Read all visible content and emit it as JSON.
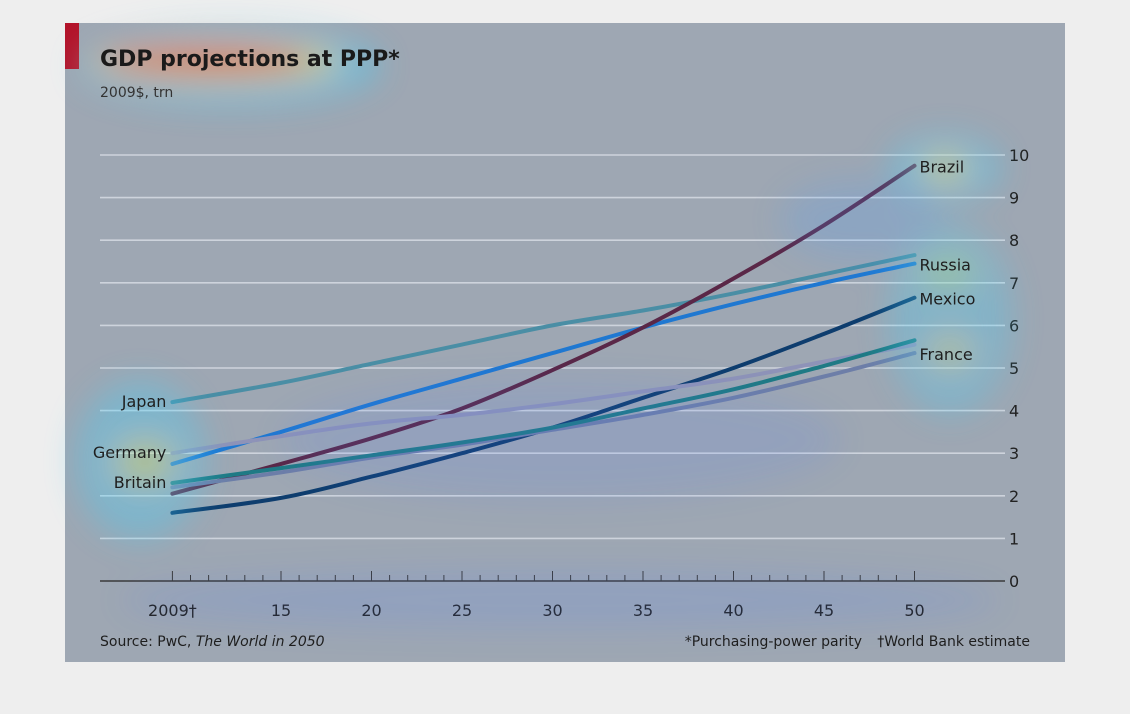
{
  "chart_data": {
    "type": "line",
    "title": "GDP projections at PPP*",
    "subtitle": "2009$, trn",
    "x_tick_labels": [
      "2009†",
      "15",
      "20",
      "25",
      "30",
      "35",
      "40",
      "45",
      "50"
    ],
    "x_tick_values": [
      2009,
      2015,
      2020,
      2025,
      2030,
      2035,
      2040,
      2045,
      2050
    ],
    "xlim": [
      2005,
      2055
    ],
    "ylim": [
      0,
      10
    ],
    "y_ticks": [
      0,
      1,
      2,
      3,
      4,
      5,
      6,
      7,
      8,
      9,
      10
    ],
    "y_axis_side": "right",
    "grid": true,
    "legend": "direct labels at line ends",
    "series": [
      {
        "name": "Japan",
        "color": "#4a8ea5",
        "x": [
          2009,
          2015,
          2020,
          2025,
          2030,
          2035,
          2040,
          2045,
          2050
        ],
        "y": [
          4.2,
          4.65,
          5.1,
          5.55,
          6.0,
          6.35,
          6.75,
          7.2,
          7.65
        ]
      },
      {
        "name": "Russia",
        "color": "#1f78d1",
        "x": [
          2009,
          2015,
          2020,
          2025,
          2030,
          2035,
          2040,
          2045,
          2050
        ],
        "y": [
          2.75,
          3.5,
          4.15,
          4.75,
          5.35,
          5.95,
          6.5,
          7.0,
          7.45
        ]
      },
      {
        "name": "Brazil",
        "color": "#5a2747",
        "x": [
          2009,
          2015,
          2020,
          2025,
          2030,
          2035,
          2040,
          2045,
          2050
        ],
        "y": [
          2.05,
          2.75,
          3.35,
          4.05,
          4.95,
          5.95,
          7.1,
          8.35,
          9.75
        ]
      },
      {
        "name": "Mexico",
        "color": "#0e3d6e",
        "x": [
          2009,
          2015,
          2020,
          2025,
          2030,
          2035,
          2040,
          2045,
          2050
        ],
        "y": [
          1.6,
          1.95,
          2.45,
          3.0,
          3.6,
          4.3,
          5.0,
          5.8,
          6.65
        ]
      },
      {
        "name": "France",
        "color": "#6d7ea8",
        "x": [
          2009,
          2015,
          2020,
          2025,
          2030,
          2035,
          2040,
          2045,
          2050
        ],
        "y": [
          2.2,
          2.55,
          2.9,
          3.2,
          3.55,
          3.9,
          4.3,
          4.8,
          5.35
        ]
      },
      {
        "name": "Germany",
        "color": "#8e93b8",
        "x": [
          2009,
          2015,
          2020,
          2025,
          2030,
          2035,
          2040,
          2045,
          2050
        ],
        "y": [
          3.0,
          3.4,
          3.7,
          3.9,
          4.15,
          4.45,
          4.75,
          5.15,
          5.55
        ]
      },
      {
        "name": "Britain",
        "color": "#1f7a85",
        "x": [
          2009,
          2015,
          2020,
          2025,
          2030,
          2035,
          2040,
          2045,
          2050
        ],
        "y": [
          2.3,
          2.65,
          2.95,
          3.25,
          3.6,
          4.05,
          4.5,
          5.05,
          5.65
        ]
      }
    ],
    "left_labels": [
      {
        "text": "Japan",
        "series": "Japan"
      },
      {
        "text": "Germany",
        "series": "Germany"
      },
      {
        "text": "Britain",
        "series": "Britain"
      }
    ],
    "right_labels": [
      {
        "text": "Brazil",
        "series": "Brazil"
      },
      {
        "text": "Russia",
        "series": "Russia"
      },
      {
        "text": "Mexico",
        "series": "Mexico"
      },
      {
        "text": "France",
        "series": "France"
      }
    ],
    "source_prefix": "Source: PwC, ",
    "source_title": "The World in 2050",
    "footnote_ppp": "*Purchasing-power parity",
    "footnote_wb": "†World Bank estimate"
  },
  "colors": {
    "panel_background": "#9ea7b3",
    "accent_bar": "#b3132a",
    "gridline": "#cdd3dc",
    "axis": "#3a3a3a"
  },
  "overlay": {
    "type": "attention heatmap"
  }
}
